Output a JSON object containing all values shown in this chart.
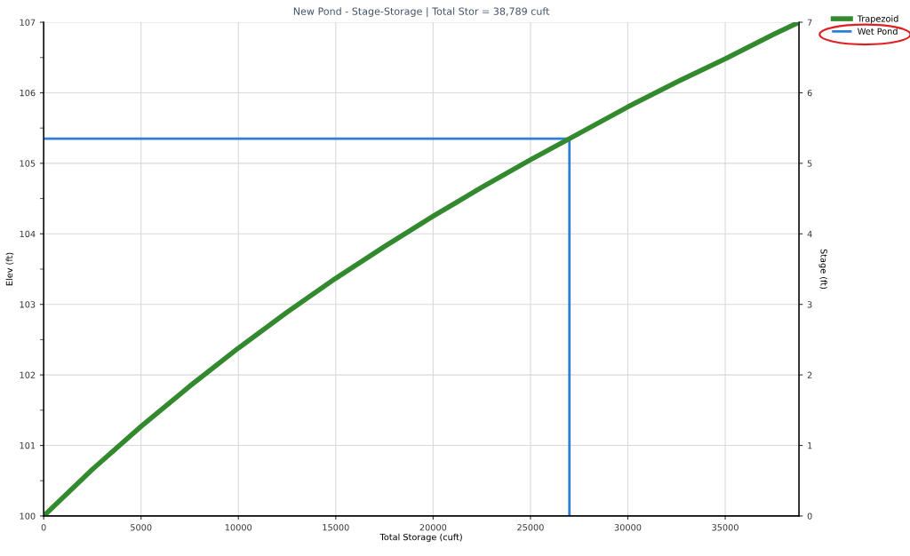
{
  "chart_data": {
    "type": "line",
    "title": "New Pond - Stage-Storage | Total Stor = 38,789 cuft",
    "xlabel": "Total Storage (cuft)",
    "ylabel": "Elev (ft)",
    "y2label": "Stage (ft)",
    "series": [
      {
        "name": "Trapezoid",
        "color": "#338a2e",
        "x": [
          0,
          2500,
          5000,
          7500,
          10000,
          12500,
          15000,
          17500,
          20000,
          22500,
          25000,
          27000,
          30000,
          32500,
          35000,
          37500,
          38789
        ],
        "values": [
          100,
          100.66,
          101.27,
          101.84,
          102.38,
          102.89,
          103.37,
          103.82,
          104.25,
          104.66,
          105.05,
          105.35,
          105.8,
          106.15,
          106.48,
          106.83,
          107
        ]
      },
      {
        "name": "Wet Pond",
        "color": "#2f7ed8",
        "x": [
          0,
          27000,
          27000
        ],
        "values": [
          105.35,
          105.35,
          100
        ]
      }
    ],
    "xlim": [
      0,
      38789
    ],
    "xticks": [
      0,
      5000,
      10000,
      15000,
      20000,
      25000,
      30000,
      35000
    ],
    "ylim": [
      100,
      107
    ],
    "yticks": [
      100,
      101,
      102,
      103,
      104,
      105,
      106,
      107
    ],
    "y2lim": [
      0,
      7
    ],
    "y2ticks": [
      0,
      1,
      2,
      3,
      4,
      5,
      6,
      7
    ],
    "grid": true,
    "legend": "top right",
    "marker": "none",
    "line_style": "solid"
  }
}
